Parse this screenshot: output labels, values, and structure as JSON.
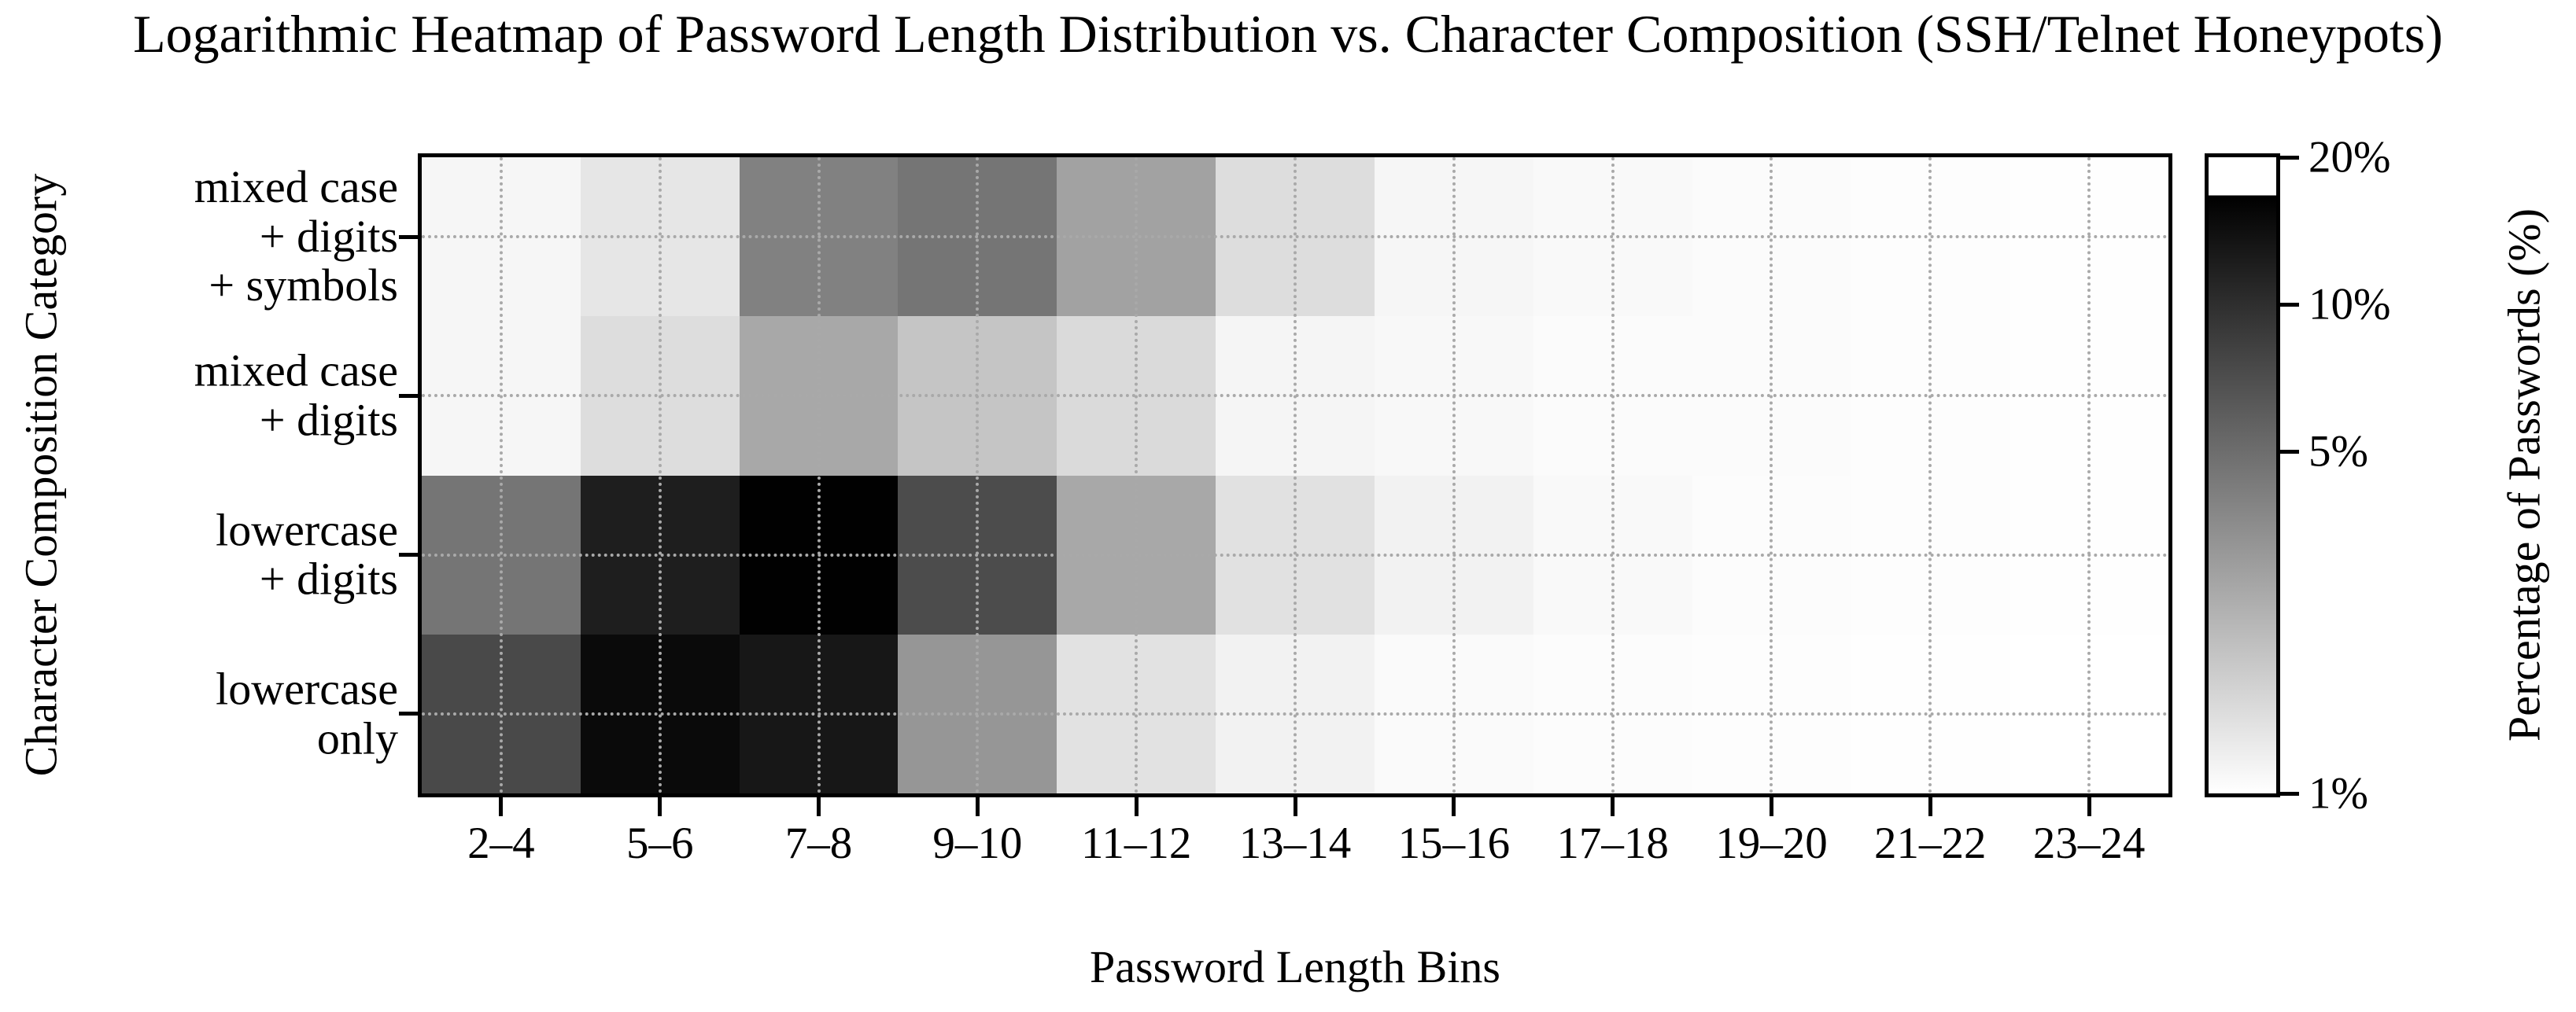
{
  "colors": {
    "background": "#ffffff",
    "foreground": "#000000",
    "grid": "#a9a9a9",
    "colormap_low": "#ffffff",
    "colormap_high": "#000000"
  },
  "chart_data": {
    "type": "heatmap",
    "title": "Logarithmic Heatmap of Password Length Distribution vs. Character Composition (SSH/Telnet Honeypots)",
    "x_axis_label": "Password Length Bins",
    "y_axis_label": "Character Composition Category",
    "colorbar_label": "Percentage of Passwords (%)",
    "x_categories": [
      "2–4",
      "5–6",
      "7–8",
      "9–10",
      "11–12",
      "13–14",
      "15–16",
      "17–18",
      "19–20",
      "21–22",
      "23–24"
    ],
    "y_categories": [
      "mixed case\n+ digits\n+ symbols",
      "mixed case\n+ digits",
      "lowercase\n+ digits",
      "lowercase\nonly"
    ],
    "values_unit": "% of passwords",
    "values": [
      [
        1.1,
        1.32,
        4.0,
        4.6,
        2.8,
        1.45,
        1.1,
        1.07,
        1.04,
        1.02,
        1.01
      ],
      [
        1.1,
        1.45,
        2.6,
        1.9,
        1.5,
        1.12,
        1.08,
        1.05,
        1.04,
        1.02,
        1.01
      ],
      [
        4.6,
        12.0,
        16.5,
        7.2,
        2.6,
        1.4,
        1.15,
        1.07,
        1.03,
        1.02,
        1.01
      ],
      [
        7.5,
        15.0,
        13.0,
        3.2,
        1.38,
        1.15,
        1.06,
        1.03,
        1.02,
        1.01,
        1.0
      ]
    ],
    "scale": "log",
    "color_scale": {
      "vmin": 1,
      "vmax": 16.7,
      "axis_min": 1,
      "axis_max": 20
    },
    "colorbar_ticks": [
      {
        "value": 20,
        "label": "20%"
      },
      {
        "value": 10,
        "label": "10%"
      },
      {
        "value": 5,
        "label": "5%"
      },
      {
        "value": 1,
        "label": "1%"
      }
    ],
    "grid": {
      "show": true,
      "style": "dotted",
      "position": "tick-centers"
    },
    "legend_position": "right-colorbar"
  }
}
